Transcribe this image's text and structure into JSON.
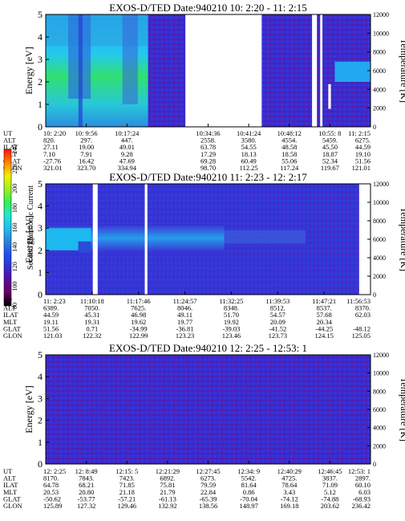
{
  "colorbar": {
    "label": "Second Harmonic Current",
    "ticks": [
      80,
      100,
      120,
      140,
      160,
      180,
      200,
      220,
      240
    ],
    "range": [
      80,
      240
    ],
    "stops": [
      "#000000",
      "#6a006a",
      "#5a0aa0",
      "#3030d8",
      "#2050f0",
      "#2a8ad8",
      "#20c0f0",
      "#20e8d0",
      "#30f050",
      "#a0f020",
      "#f0f000",
      "#ff8000",
      "#ff1010"
    ]
  },
  "row_labels": [
    "UT",
    "ALT",
    "ILAT",
    "MLT",
    "GLAT",
    "GLON"
  ],
  "panels": [
    {
      "title": "EXOS-D/TED",
      "date_label": "Date:940210",
      "time_range": "10: 2:20 - 11: 2:15",
      "ylabel": "Energy [eV]",
      "y2label": "Temperature [K]",
      "y_ticks": [
        "0",
        "1",
        "2",
        "3",
        "4",
        "5"
      ],
      "y2_ticks": [
        "0",
        "2000",
        "4000",
        "6000",
        "8000",
        "10000",
        "12000"
      ],
      "gaps": [
        [
          0.43,
          0.665
        ],
        [
          0.82,
          0.835
        ],
        [
          0.845,
          0.852
        ]
      ],
      "cols": [
        {
          "UT": "10: 2:20",
          "ALT": "820.",
          "ILAT": "27.11",
          "MLT": "7.10",
          "GLAT": "-27.76",
          "GLON": "321.01"
        },
        {
          "UT": "10: 9:56",
          "ALT": "297.",
          "ILAT": "19.00",
          "MLT": "7.91",
          "GLAT": "16.42",
          "GLON": "323.70"
        },
        {
          "UT": "10:17:24",
          "ALT": "447.",
          "ILAT": "49.01",
          "MLT": "9.28",
          "GLAT": "47.69",
          "GLON": "334.94"
        },
        {
          "UT": "",
          "ALT": "",
          "ILAT": "",
          "MLT": "",
          "GLAT": "",
          "GLON": ""
        },
        {
          "UT": "10:34:36",
          "ALT": "2558.",
          "ILAT": "63.78",
          "MLT": "17.29",
          "GLAT": "69.28",
          "GLON": "98.70"
        },
        {
          "UT": "10:41:24",
          "ALT": "3580.",
          "ILAT": "54.55",
          "MLT": "18.13",
          "GLAT": "60.49",
          "GLON": "112.25"
        },
        {
          "UT": "10:48:12",
          "ALT": "4554.",
          "ILAT": "48.58",
          "MLT": "18.58",
          "GLAT": "55.06",
          "GLON": "117.24"
        },
        {
          "UT": "10:55: 8",
          "ALT": "5459.",
          "ILAT": "45.50",
          "MLT": "18.87",
          "GLAT": "52.34",
          "GLON": "119.67"
        },
        {
          "UT": "11: 2:15",
          "ALT": "6275.",
          "ILAT": "44.59",
          "MLT": "19.10",
          "GLAT": "51.56",
          "GLON": "121.01"
        }
      ]
    },
    {
      "title": "EXOS-D/TED",
      "date_label": "Date:940210",
      "time_range": "11: 2:23 - 12: 2:17",
      "ylabel": "Energy [eV]",
      "y2label": "Temperature [K]",
      "y_ticks": [
        "0",
        "1",
        "2",
        "3",
        "4",
        "5"
      ],
      "y2_ticks": [
        "0",
        "2000",
        "4000",
        "6000",
        "8000",
        "10000",
        "12000"
      ],
      "gaps": [
        [
          0.145,
          0.16
        ],
        [
          0.305,
          0.313
        ],
        [
          0.965,
          1.0
        ]
      ],
      "cols": [
        {
          "UT": "11: 2:23",
          "ALT": "6389.",
          "ILAT": "44.59",
          "MLT": "19.11",
          "GLAT": "51.56",
          "GLON": "121.03"
        },
        {
          "UT": "11:10:18",
          "ALT": "7050.",
          "ILAT": "45.31",
          "MLT": "19.31",
          "GLAT": "0.71",
          "GLON": "122.32"
        },
        {
          "UT": "11:17:46",
          "ALT": "7625.",
          "ILAT": "46.98",
          "MLT": "19.62",
          "GLAT": "-34.99",
          "GLON": "122.99"
        },
        {
          "UT": "11:24:57",
          "ALT": "8046.",
          "ILAT": "49.11",
          "MLT": "19.77",
          "GLAT": "-36.81",
          "GLON": "123.23"
        },
        {
          "UT": "11:32:25",
          "ALT": "8348.",
          "ILAT": "51.70",
          "MLT": "19.92",
          "GLAT": "-39.03",
          "GLON": "123.46"
        },
        {
          "UT": "11:39:53",
          "ALT": "8512.",
          "ILAT": "54.57",
          "MLT": "20.09",
          "GLAT": "-41.52",
          "GLON": "123.73"
        },
        {
          "UT": "11:47:21",
          "ALT": "8537.",
          "ILAT": "57.68",
          "MLT": "20.34",
          "GLAT": "-44.25",
          "GLON": "124.15"
        },
        {
          "UT": "11:56:53",
          "ALT": "8370.",
          "ILAT": "62.03",
          "MLT": "",
          "GLAT": "-48.12",
          "GLON": "125.05"
        }
      ]
    },
    {
      "title": "EXOS-D/TED",
      "date_label": "Date:940210",
      "time_range": "12: 2:25 - 12:53: 1",
      "ylabel": "Energy [eV]",
      "y2label": "Temperature [K]",
      "y_ticks": [
        "0",
        "1",
        "2",
        "3",
        "4",
        "5"
      ],
      "y2_ticks": [
        "0",
        "2000",
        "4000",
        "6000",
        "8000",
        "10000",
        "12000"
      ],
      "gaps": [],
      "cols": [
        {
          "UT": "12: 2:25",
          "ALT": "8170.",
          "ILAT": "64.78",
          "MLT": "20.53",
          "GLAT": "-50.62",
          "GLON": "125.89"
        },
        {
          "UT": "12: 8:49",
          "ALT": "7843.",
          "ILAT": "68.21",
          "MLT": "20.80",
          "GLAT": "-53.77",
          "GLON": "127.32"
        },
        {
          "UT": "12:15: 5",
          "ALT": "7423.",
          "ILAT": "71.85",
          "MLT": "21.18",
          "GLAT": "-57.21",
          "GLON": "129.46"
        },
        {
          "UT": "12:21:29",
          "ALT": "6892.",
          "ILAT": "75.81",
          "MLT": "21.79",
          "GLAT": "-61.13",
          "GLON": "132.92"
        },
        {
          "UT": "12:27:45",
          "ALT": "6273.",
          "ILAT": "79.59",
          "MLT": "22.84",
          "GLAT": "-65.39",
          "GLON": "138.56"
        },
        {
          "UT": "12:34: 9",
          "ALT": "5542.",
          "ILAT": "81.64",
          "MLT": "0.86",
          "GLAT": "-70.04",
          "GLON": "148.97"
        },
        {
          "UT": "12:40:29",
          "ALT": "4725.",
          "ILAT": "78.64",
          "MLT": "3.43",
          "GLAT": "-74.12",
          "GLON": "169.18"
        },
        {
          "UT": "12:46:45",
          "ALT": "3837.",
          "ILAT": "71.09",
          "MLT": "5.12",
          "GLAT": "-74.88",
          "GLON": "203.62"
        },
        {
          "UT": "12:53: 1",
          "ALT": "2897.",
          "ILAT": "60.10",
          "MLT": "6.03",
          "GLAT": "-68.93",
          "GLON": "236.42"
        }
      ]
    }
  ],
  "chart_data": [
    {
      "type": "heatmap",
      "title": "EXOS-D/TED   Date:940210  10: 2:20 - 11: 2:15",
      "xlabel": "",
      "ylabel": "Energy [eV]",
      "y2label": "Temperature [K]",
      "ylim": [
        0,
        5
      ],
      "y2lim": [
        0,
        12000
      ],
      "x_ticks": [
        "10: 2:20",
        "10: 9:56",
        "10:17:24",
        "",
        "10:34:36",
        "10:41:24",
        "10:48:12",
        "10:55: 8",
        "11: 2:15"
      ],
      "intensity_label": "Second Harmonic Current",
      "intensity_range": [
        80,
        240
      ]
    },
    {
      "type": "heatmap",
      "title": "EXOS-D/TED   Date:940210  11: 2:23 - 12: 2:17",
      "xlabel": "",
      "ylabel": "Energy [eV]",
      "y2label": "Temperature [K]",
      "ylim": [
        0,
        5
      ],
      "y2lim": [
        0,
        12000
      ],
      "x_ticks": [
        "11: 2:23",
        "11:10:18",
        "11:17:46",
        "11:24:57",
        "11:32:25",
        "11:39:53",
        "11:47:21",
        "11:56:53"
      ],
      "intensity_label": "Second Harmonic Current",
      "intensity_range": [
        80,
        240
      ]
    },
    {
      "type": "heatmap",
      "title": "EXOS-D/TED   Date:940210  12: 2:25 - 12:53: 1",
      "xlabel": "",
      "ylabel": "Energy [eV]",
      "y2label": "Temperature [K]",
      "ylim": [
        0,
        5
      ],
      "y2lim": [
        0,
        12000
      ],
      "x_ticks": [
        "12: 2:25",
        "12: 8:49",
        "12:15: 5",
        "12:21:29",
        "12:27:45",
        "12:34: 9",
        "12:40:29",
        "12:46:45",
        "12:53: 1"
      ],
      "intensity_label": "Second Harmonic Current",
      "intensity_range": [
        80,
        240
      ]
    }
  ]
}
